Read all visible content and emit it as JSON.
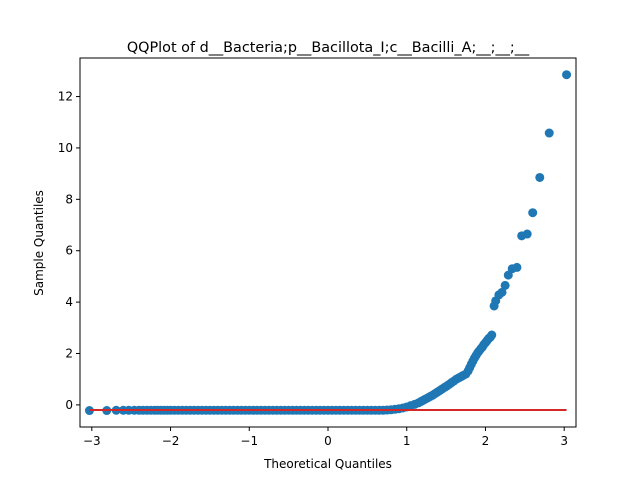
{
  "chart_data": {
    "type": "scatter",
    "title": "QQPlot of d__Bacteria;p__Bacillota_I;c__Bacilli_A;__;__;__",
    "xlabel": "Theoretical Quantiles",
    "ylabel": "Sample Quantiles",
    "xlim": [
      -3.15,
      3.15
    ],
    "ylim": [
      -0.86,
      13.5
    ],
    "xticks": [
      -3,
      -2,
      -1,
      0,
      1,
      2,
      3
    ],
    "yticks": [
      0,
      2,
      4,
      6,
      8,
      10,
      12
    ],
    "grid": false,
    "legend": "none",
    "colors": {
      "points": "#1f77b4",
      "reference_line": "#d62728"
    },
    "reference_line": {
      "x": [
        -3.03,
        3.03
      ],
      "y": [
        -0.2,
        -0.2
      ]
    },
    "series": [
      {
        "x": [
          -3.03,
          -2.81,
          -2.69,
          -2.6,
          -2.53,
          -2.46,
          -2.4,
          -2.35,
          -2.3,
          -2.25,
          -2.2,
          -2.16,
          -2.12,
          -2.08,
          -2.04,
          -2.0,
          -1.95,
          -1.9,
          -1.85,
          -1.8,
          -1.75,
          -1.7,
          -1.65,
          -1.6,
          -1.55,
          -1.5,
          -1.45,
          -1.4,
          -1.35,
          -1.3,
          -1.25,
          -1.2,
          -1.15,
          -1.1,
          -1.05,
          -1.0,
          -0.95,
          -0.9,
          -0.85,
          -0.8,
          -0.75,
          -0.7,
          -0.65,
          -0.6,
          -0.55,
          -0.5,
          -0.45,
          -0.4,
          -0.35,
          -0.3,
          -0.25,
          -0.2,
          -0.15,
          -0.1,
          -0.05,
          0.0,
          0.05,
          0.1,
          0.15,
          0.2,
          0.25,
          0.3,
          0.35,
          0.4,
          0.45,
          0.5,
          0.55,
          0.6,
          0.65,
          0.7,
          0.75,
          0.8,
          0.85,
          0.9,
          0.95,
          1.0,
          1.05,
          1.1,
          1.15,
          1.18,
          1.21,
          1.24,
          1.27,
          1.3,
          1.33,
          1.36,
          1.39,
          1.42,
          1.45,
          1.48,
          1.51,
          1.54,
          1.57,
          1.6,
          1.63,
          1.66,
          1.69,
          1.72,
          1.75,
          1.78,
          1.8,
          1.82,
          1.84,
          1.86,
          1.88,
          1.9,
          1.92,
          1.94,
          1.96,
          1.98,
          2.0,
          2.02,
          2.04,
          2.06,
          2.08,
          2.11,
          2.13,
          2.17,
          2.21,
          2.25,
          2.29,
          2.34,
          2.4,
          2.46,
          2.53,
          2.6,
          2.69,
          2.81,
          3.03
        ],
        "y": [
          -0.22,
          -0.22,
          -0.21,
          -0.21,
          -0.21,
          -0.21,
          -0.21,
          -0.21,
          -0.21,
          -0.21,
          -0.21,
          -0.21,
          -0.21,
          -0.21,
          -0.21,
          -0.21,
          -0.21,
          -0.21,
          -0.21,
          -0.21,
          -0.21,
          -0.21,
          -0.21,
          -0.21,
          -0.21,
          -0.21,
          -0.21,
          -0.21,
          -0.21,
          -0.21,
          -0.21,
          -0.21,
          -0.21,
          -0.21,
          -0.21,
          -0.21,
          -0.21,
          -0.21,
          -0.21,
          -0.21,
          -0.21,
          -0.21,
          -0.21,
          -0.21,
          -0.21,
          -0.21,
          -0.21,
          -0.21,
          -0.21,
          -0.21,
          -0.21,
          -0.21,
          -0.21,
          -0.21,
          -0.21,
          -0.21,
          -0.21,
          -0.21,
          -0.21,
          -0.21,
          -0.21,
          -0.21,
          -0.21,
          -0.21,
          -0.21,
          -0.21,
          -0.21,
          -0.21,
          -0.21,
          -0.21,
          -0.2,
          -0.19,
          -0.17,
          -0.15,
          -0.12,
          -0.08,
          -0.03,
          0.02,
          0.08,
          0.13,
          0.18,
          0.23,
          0.28,
          0.33,
          0.38,
          0.44,
          0.5,
          0.56,
          0.62,
          0.68,
          0.74,
          0.8,
          0.87,
          0.93,
          1.0,
          1.05,
          1.1,
          1.15,
          1.2,
          1.32,
          1.45,
          1.58,
          1.7,
          1.82,
          1.92,
          2.02,
          2.1,
          2.18,
          2.25,
          2.35,
          2.42,
          2.5,
          2.58,
          2.63,
          2.72,
          3.85,
          4.05,
          4.28,
          4.38,
          4.65,
          5.05,
          5.3,
          5.35,
          6.58,
          6.65,
          7.48,
          8.85,
          10.58,
          12.85
        ]
      }
    ]
  }
}
